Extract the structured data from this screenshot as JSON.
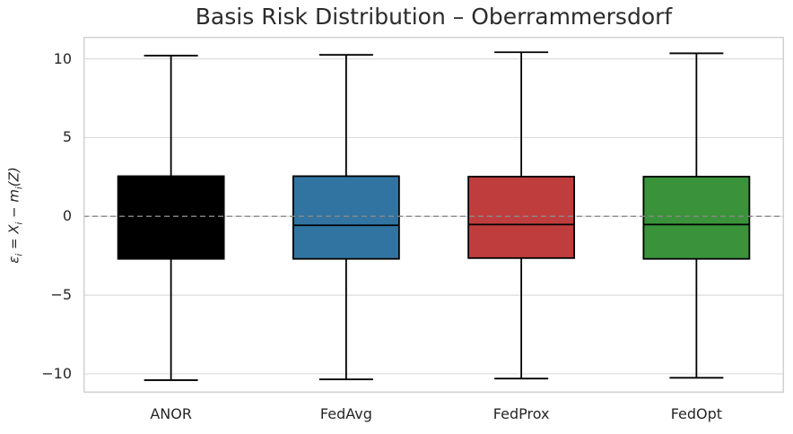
{
  "chart_data": {
    "type": "box",
    "title": "Basis Risk Distribution – Oberrammersdorf",
    "xlabel": "",
    "ylabel": "ε_i = X_i − m_i(Z)",
    "ylabel_parts": [
      {
        "t": "ε",
        "sub": "i"
      },
      {
        "t": " = "
      },
      {
        "t": "X",
        "sub": "i"
      },
      {
        "t": " − "
      },
      {
        "t": "m",
        "sub": "i"
      },
      {
        "t": "(Z)"
      }
    ],
    "categories": [
      "ANOR",
      "FedAvg",
      "FedProx",
      "FedOpt"
    ],
    "series": [
      {
        "name": "ANOR",
        "color": "#000000",
        "whisker_low": -10.4,
        "q1": -2.7,
        "median": -0.55,
        "q3": 2.55,
        "whisker_high": 10.2
      },
      {
        "name": "FedAvg",
        "color": "#3274a1",
        "whisker_low": -10.35,
        "q1": -2.7,
        "median": -0.57,
        "q3": 2.55,
        "whisker_high": 10.25
      },
      {
        "name": "FedProx",
        "color": "#c03d3e",
        "whisker_low": -10.3,
        "q1": -2.65,
        "median": -0.52,
        "q3": 2.52,
        "whisker_high": 10.42
      },
      {
        "name": "FedOpt",
        "color": "#3a923a",
        "whisker_low": -10.25,
        "q1": -2.7,
        "median": -0.52,
        "q3": 2.52,
        "whisker_high": 10.35
      }
    ],
    "yticks": [
      10,
      5,
      0,
      -5,
      -10
    ],
    "ytick_labels": [
      "10",
      "5",
      "0",
      "−5",
      "−10"
    ],
    "ylim": [
      -11.2,
      11.4
    ],
    "grid": "horizontal",
    "legend": "none",
    "zero_line": {
      "y": 0,
      "style": "dashed",
      "color": "#8a8a8a"
    },
    "colors": {
      "axis_border": "#cccccc",
      "gridline": "#dcdcdc",
      "box_edge": "#000000",
      "text": "#262626",
      "title_text": "#2b2b2b",
      "background": "#ffffff"
    }
  }
}
